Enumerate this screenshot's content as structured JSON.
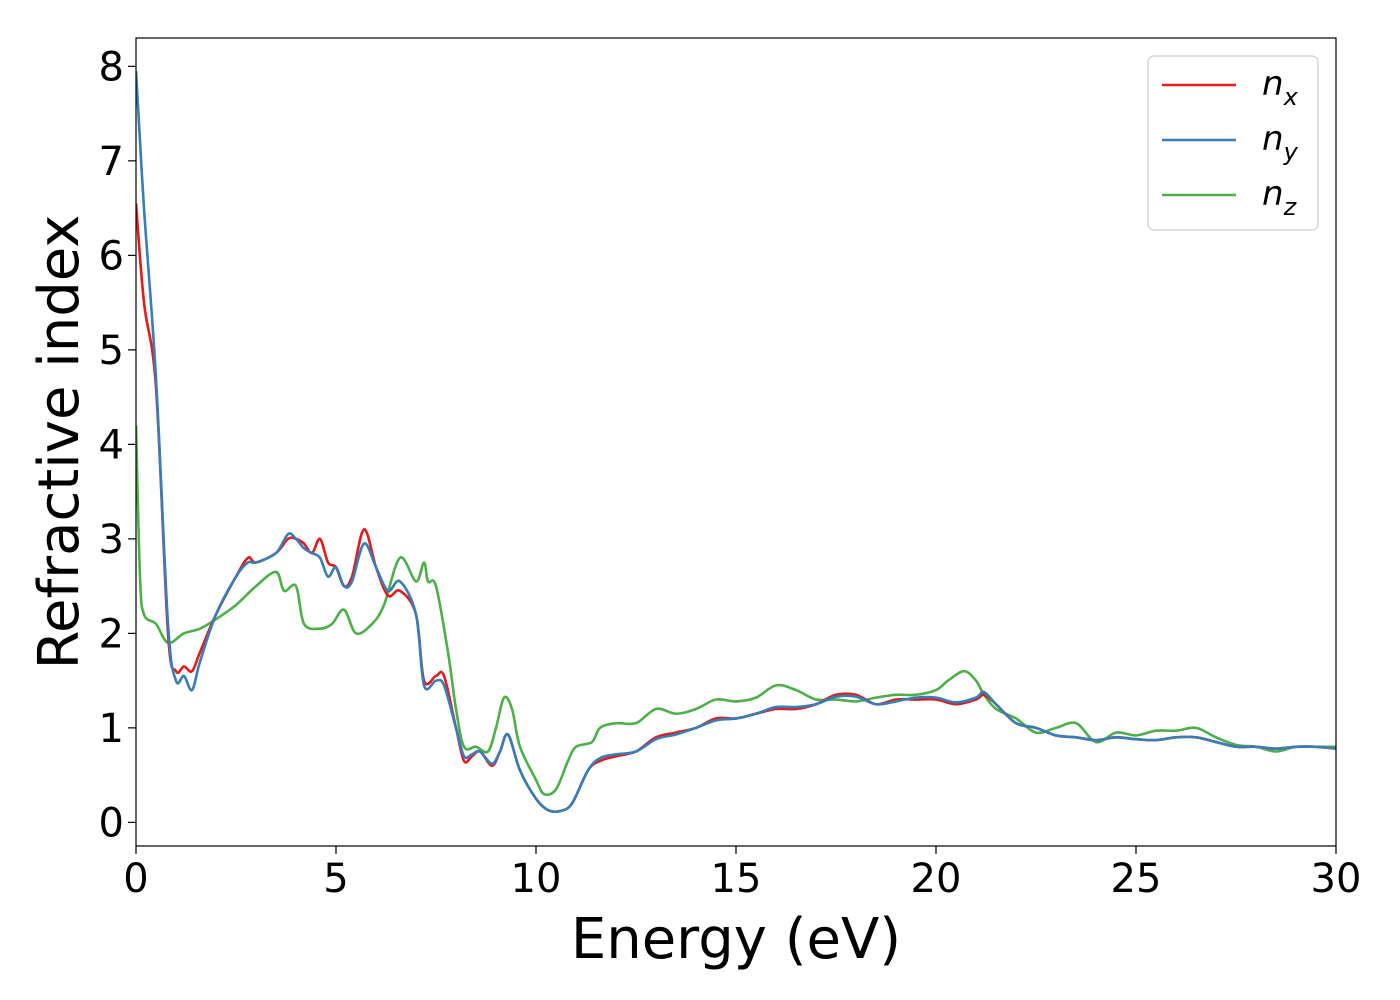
{
  "chart_data": {
    "type": "line",
    "title": "",
    "xlabel": "Energy (eV)",
    "ylabel": "Refractive index",
    "xlim": [
      0,
      30
    ],
    "ylim": [
      -0.25,
      8.3
    ],
    "xticks": [
      0,
      5,
      10,
      15,
      20,
      25,
      30
    ],
    "yticks": [
      0,
      1,
      2,
      3,
      4,
      5,
      6,
      7,
      8
    ],
    "grid": false,
    "legend_position": "top-right",
    "series": [
      {
        "name": "n",
        "subscript": "x",
        "color": "#e41a1c",
        "points": [
          [
            0,
            6.55
          ],
          [
            0.2,
            5.5
          ],
          [
            0.5,
            4.6
          ],
          [
            0.8,
            2.0
          ],
          [
            1.0,
            1.6
          ],
          [
            1.2,
            1.65
          ],
          [
            1.4,
            1.6
          ],
          [
            1.6,
            1.8
          ],
          [
            2.0,
            2.2
          ],
          [
            2.5,
            2.6
          ],
          [
            2.8,
            2.8
          ],
          [
            3.0,
            2.75
          ],
          [
            3.5,
            2.85
          ],
          [
            3.8,
            3.0
          ],
          [
            4.0,
            3.0
          ],
          [
            4.2,
            2.95
          ],
          [
            4.4,
            2.85
          ],
          [
            4.6,
            3.0
          ],
          [
            4.8,
            2.75
          ],
          [
            5.0,
            2.7
          ],
          [
            5.2,
            2.5
          ],
          [
            5.4,
            2.6
          ],
          [
            5.7,
            3.1
          ],
          [
            6.0,
            2.7
          ],
          [
            6.3,
            2.4
          ],
          [
            6.6,
            2.45
          ],
          [
            7.0,
            2.2
          ],
          [
            7.2,
            1.5
          ],
          [
            7.5,
            1.55
          ],
          [
            7.7,
            1.55
          ],
          [
            8.0,
            1.0
          ],
          [
            8.2,
            0.65
          ],
          [
            8.4,
            0.7
          ],
          [
            8.6,
            0.75
          ],
          [
            8.9,
            0.6
          ],
          [
            9.1,
            0.75
          ],
          [
            9.3,
            0.93
          ],
          [
            9.6,
            0.55
          ],
          [
            10.0,
            0.25
          ],
          [
            10.3,
            0.13
          ],
          [
            10.6,
            0.12
          ],
          [
            10.9,
            0.2
          ],
          [
            11.3,
            0.55
          ],
          [
            11.6,
            0.65
          ],
          [
            12.0,
            0.7
          ],
          [
            12.5,
            0.75
          ],
          [
            13.0,
            0.9
          ],
          [
            13.5,
            0.95
          ],
          [
            14.0,
            1.0
          ],
          [
            14.5,
            1.1
          ],
          [
            15.0,
            1.1
          ],
          [
            15.5,
            1.15
          ],
          [
            16.0,
            1.2
          ],
          [
            16.5,
            1.2
          ],
          [
            17.0,
            1.25
          ],
          [
            17.5,
            1.35
          ],
          [
            18.0,
            1.35
          ],
          [
            18.5,
            1.25
          ],
          [
            19.0,
            1.3
          ],
          [
            19.5,
            1.3
          ],
          [
            20.0,
            1.3
          ],
          [
            20.5,
            1.25
          ],
          [
            21.0,
            1.3
          ],
          [
            21.2,
            1.35
          ],
          [
            21.5,
            1.25
          ],
          [
            22.0,
            1.05
          ],
          [
            22.5,
            1.0
          ],
          [
            23.0,
            0.92
          ],
          [
            23.5,
            0.9
          ],
          [
            24.0,
            0.87
          ],
          [
            24.5,
            0.9
          ],
          [
            25.0,
            0.88
          ],
          [
            25.5,
            0.87
          ],
          [
            26.0,
            0.9
          ],
          [
            26.5,
            0.9
          ],
          [
            27.0,
            0.85
          ],
          [
            27.5,
            0.8
          ],
          [
            28.0,
            0.8
          ],
          [
            28.5,
            0.78
          ],
          [
            29.0,
            0.8
          ],
          [
            29.5,
            0.8
          ],
          [
            30.0,
            0.78
          ]
        ]
      },
      {
        "name": "n",
        "subscript": "y",
        "color": "#377eb8",
        "points": [
          [
            0,
            7.95
          ],
          [
            0.2,
            6.5
          ],
          [
            0.5,
            4.7
          ],
          [
            0.8,
            2.1
          ],
          [
            1.0,
            1.5
          ],
          [
            1.2,
            1.55
          ],
          [
            1.4,
            1.4
          ],
          [
            1.6,
            1.7
          ],
          [
            2.0,
            2.2
          ],
          [
            2.5,
            2.6
          ],
          [
            2.8,
            2.75
          ],
          [
            3.0,
            2.75
          ],
          [
            3.5,
            2.85
          ],
          [
            3.8,
            3.05
          ],
          [
            4.0,
            3.0
          ],
          [
            4.2,
            2.9
          ],
          [
            4.4,
            2.85
          ],
          [
            4.6,
            2.8
          ],
          [
            4.8,
            2.6
          ],
          [
            5.0,
            2.7
          ],
          [
            5.2,
            2.5
          ],
          [
            5.4,
            2.55
          ],
          [
            5.7,
            2.95
          ],
          [
            6.0,
            2.7
          ],
          [
            6.3,
            2.45
          ],
          [
            6.6,
            2.55
          ],
          [
            7.0,
            2.2
          ],
          [
            7.2,
            1.45
          ],
          [
            7.5,
            1.5
          ],
          [
            7.7,
            1.45
          ],
          [
            8.0,
            1.0
          ],
          [
            8.2,
            0.7
          ],
          [
            8.4,
            0.72
          ],
          [
            8.6,
            0.75
          ],
          [
            8.9,
            0.62
          ],
          [
            9.1,
            0.75
          ],
          [
            9.3,
            0.93
          ],
          [
            9.6,
            0.55
          ],
          [
            10.0,
            0.25
          ],
          [
            10.3,
            0.13
          ],
          [
            10.6,
            0.12
          ],
          [
            10.9,
            0.2
          ],
          [
            11.3,
            0.55
          ],
          [
            11.6,
            0.68
          ],
          [
            12.0,
            0.72
          ],
          [
            12.5,
            0.75
          ],
          [
            13.0,
            0.88
          ],
          [
            13.5,
            0.93
          ],
          [
            14.0,
            1.0
          ],
          [
            14.5,
            1.08
          ],
          [
            15.0,
            1.1
          ],
          [
            15.5,
            1.15
          ],
          [
            16.0,
            1.22
          ],
          [
            16.5,
            1.22
          ],
          [
            17.0,
            1.25
          ],
          [
            17.5,
            1.33
          ],
          [
            18.0,
            1.33
          ],
          [
            18.5,
            1.25
          ],
          [
            19.0,
            1.28
          ],
          [
            19.5,
            1.32
          ],
          [
            20.0,
            1.32
          ],
          [
            20.5,
            1.27
          ],
          [
            21.0,
            1.32
          ],
          [
            21.2,
            1.38
          ],
          [
            21.5,
            1.25
          ],
          [
            22.0,
            1.05
          ],
          [
            22.5,
            1.0
          ],
          [
            23.0,
            0.92
          ],
          [
            23.5,
            0.9
          ],
          [
            24.0,
            0.87
          ],
          [
            24.5,
            0.9
          ],
          [
            25.0,
            0.88
          ],
          [
            25.5,
            0.87
          ],
          [
            26.0,
            0.9
          ],
          [
            26.5,
            0.9
          ],
          [
            27.0,
            0.85
          ],
          [
            27.5,
            0.8
          ],
          [
            28.0,
            0.8
          ],
          [
            28.5,
            0.78
          ],
          [
            29.0,
            0.8
          ],
          [
            29.5,
            0.8
          ],
          [
            30.0,
            0.78
          ]
        ]
      },
      {
        "name": "n",
        "subscript": "z",
        "color": "#4daf4a",
        "points": [
          [
            0,
            4.2
          ],
          [
            0.1,
            2.6
          ],
          [
            0.2,
            2.2
          ],
          [
            0.5,
            2.1
          ],
          [
            0.8,
            1.9
          ],
          [
            1.2,
            2.0
          ],
          [
            1.6,
            2.05
          ],
          [
            2.0,
            2.15
          ],
          [
            2.5,
            2.3
          ],
          [
            3.0,
            2.5
          ],
          [
            3.5,
            2.65
          ],
          [
            3.7,
            2.45
          ],
          [
            4.0,
            2.5
          ],
          [
            4.2,
            2.1
          ],
          [
            4.6,
            2.05
          ],
          [
            4.9,
            2.1
          ],
          [
            5.2,
            2.25
          ],
          [
            5.5,
            2.0
          ],
          [
            5.9,
            2.1
          ],
          [
            6.2,
            2.3
          ],
          [
            6.6,
            2.8
          ],
          [
            7.0,
            2.55
          ],
          [
            7.2,
            2.75
          ],
          [
            7.3,
            2.55
          ],
          [
            7.5,
            2.5
          ],
          [
            7.8,
            1.8
          ],
          [
            8.0,
            1.2
          ],
          [
            8.2,
            0.8
          ],
          [
            8.5,
            0.8
          ],
          [
            8.8,
            0.75
          ],
          [
            9.0,
            1.0
          ],
          [
            9.2,
            1.32
          ],
          [
            9.4,
            1.2
          ],
          [
            9.6,
            0.8
          ],
          [
            10.0,
            0.45
          ],
          [
            10.2,
            0.3
          ],
          [
            10.5,
            0.35
          ],
          [
            10.8,
            0.65
          ],
          [
            11.0,
            0.8
          ],
          [
            11.4,
            0.85
          ],
          [
            11.6,
            1.0
          ],
          [
            12.0,
            1.05
          ],
          [
            12.5,
            1.05
          ],
          [
            13.0,
            1.2
          ],
          [
            13.5,
            1.15
          ],
          [
            14.0,
            1.2
          ],
          [
            14.5,
            1.3
          ],
          [
            15.0,
            1.28
          ],
          [
            15.5,
            1.32
          ],
          [
            16.0,
            1.45
          ],
          [
            16.5,
            1.4
          ],
          [
            17.0,
            1.3
          ],
          [
            17.5,
            1.3
          ],
          [
            18.0,
            1.28
          ],
          [
            18.5,
            1.32
          ],
          [
            19.0,
            1.35
          ],
          [
            19.5,
            1.35
          ],
          [
            20.0,
            1.4
          ],
          [
            20.3,
            1.5
          ],
          [
            20.7,
            1.6
          ],
          [
            21.0,
            1.5
          ],
          [
            21.2,
            1.35
          ],
          [
            21.5,
            1.2
          ],
          [
            22.0,
            1.1
          ],
          [
            22.5,
            0.95
          ],
          [
            23.0,
            1.0
          ],
          [
            23.5,
            1.05
          ],
          [
            24.0,
            0.85
          ],
          [
            24.5,
            0.95
          ],
          [
            25.0,
            0.92
          ],
          [
            25.5,
            0.97
          ],
          [
            26.0,
            0.97
          ],
          [
            26.5,
            1.0
          ],
          [
            27.0,
            0.9
          ],
          [
            27.5,
            0.82
          ],
          [
            28.0,
            0.8
          ],
          [
            28.5,
            0.75
          ],
          [
            29.0,
            0.8
          ],
          [
            29.5,
            0.8
          ],
          [
            30.0,
            0.8
          ]
        ]
      }
    ]
  }
}
